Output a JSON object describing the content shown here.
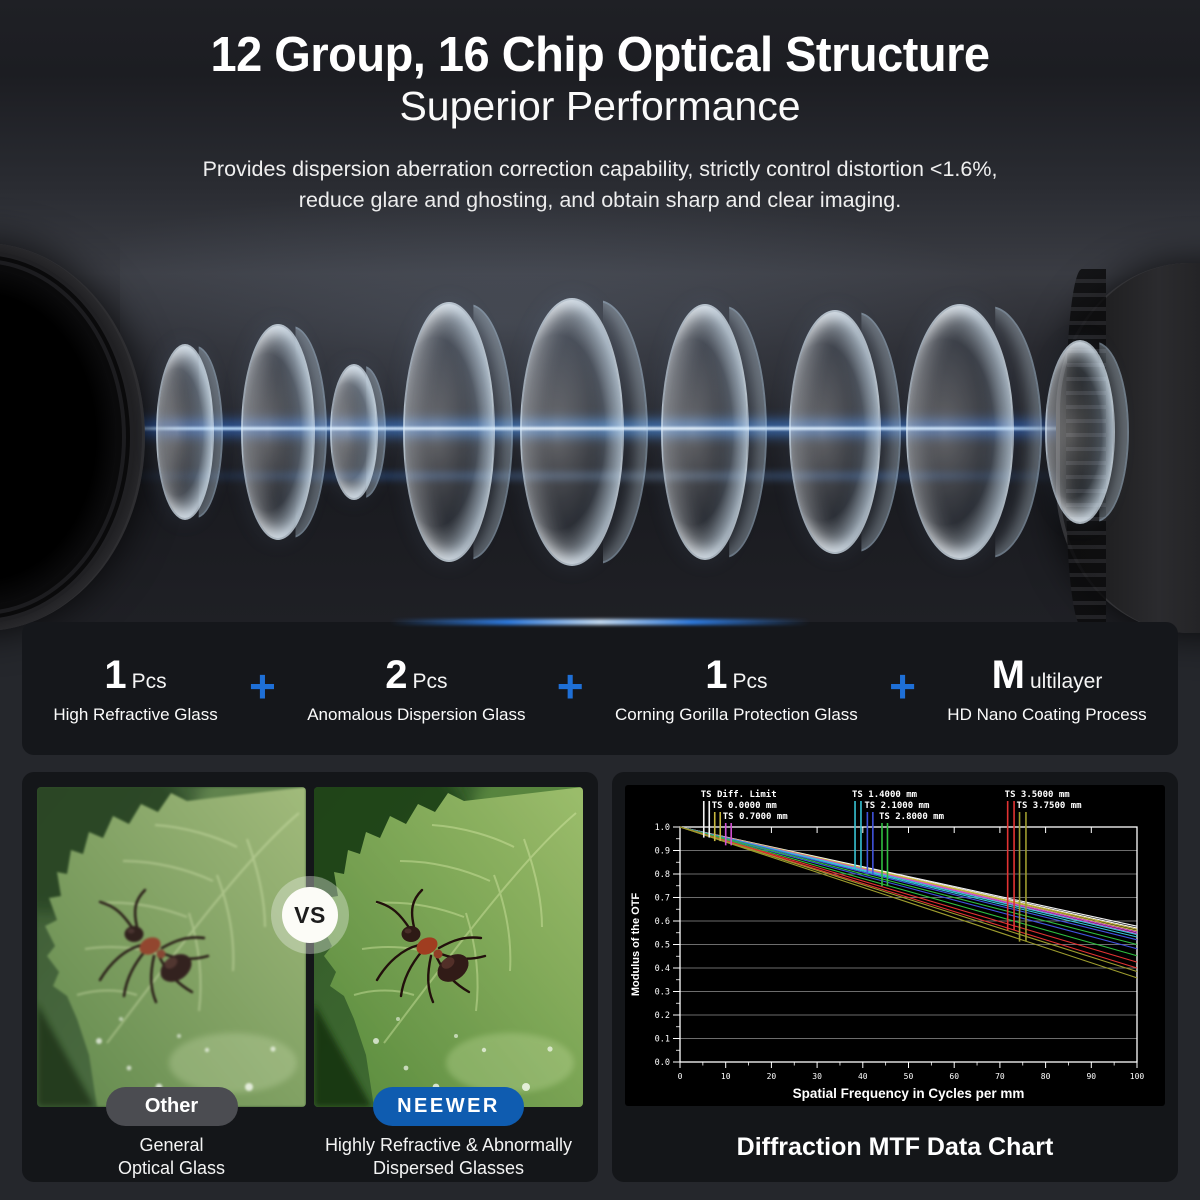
{
  "header": {
    "title": "12 Group, 16 Chip Optical Structure",
    "subtitle": "Superior Performance",
    "description_line1": "Provides dispersion aberration correction capability, strictly control distortion <1.6%,",
    "description_line2": "reduce glare and ghosting, and obtain sharp and clear imaging."
  },
  "colors": {
    "accent_blue": "#1e6fd6",
    "badge_other": "#4b4c51",
    "badge_neewer": "#0f5cb0",
    "card_bg": "#141619"
  },
  "specs": {
    "plus": "+",
    "items": [
      {
        "value": "1",
        "unit": "Pcs",
        "label": "High Refractive Glass"
      },
      {
        "value": "2",
        "unit": "Pcs",
        "label": "Anomalous Dispersion Glass"
      },
      {
        "value": "1",
        "unit": "Pcs",
        "label": "Corning Gorilla Protection Glass"
      },
      {
        "value": "M",
        "unit": "ultilayer",
        "label": "HD Nano Coating Process"
      }
    ]
  },
  "comparison": {
    "vs": "VS",
    "left": {
      "badge": "Other",
      "caption_line1": "General",
      "caption_line2": "Optical Glass"
    },
    "right": {
      "badge": "NEEWER",
      "caption_line1": "Highly Refractive & Abnormally",
      "caption_line2": "Dispersed Glasses"
    }
  },
  "chart_section": {
    "title": "Diffraction MTF Data Chart"
  },
  "chart_data": {
    "type": "line",
    "title": "Diffraction MTF Data Chart",
    "xlabel": "Spatial Frequency in Cycles per mm",
    "ylabel": "Modulus of the OTF",
    "xlim": [
      0,
      100
    ],
    "ylim": [
      0,
      1
    ],
    "x_ticks": [
      0,
      10,
      20,
      30,
      40,
      50,
      60,
      70,
      80,
      90,
      100
    ],
    "y_tick_step": 0.1,
    "grid": "horizontal",
    "legend_position": "top",
    "note": "Each TS series is a pair of straight lines (tangential/sagittal) from (0,1.0) to (100,end); marker_x are the legend key vertical lines hanging to marker_bottom.",
    "series": [
      {
        "name": "TS Diff. Limit",
        "color": "#f2f2f2",
        "row": 0,
        "marker_x": [
          5.2,
          6.4
        ],
        "marker_bottom": 0.955,
        "x": [
          0,
          100
        ],
        "ends": [
          0.578,
          0.57
        ]
      },
      {
        "name": "TS 0.0000 mm",
        "color": "#c8b93f",
        "row": 1,
        "marker_x": [
          7.6,
          8.8
        ],
        "marker_bottom": 0.94,
        "x": [
          0,
          100
        ],
        "ends": [
          0.565,
          0.558
        ]
      },
      {
        "name": "TS 0.7000 mm",
        "color": "#d14fd1",
        "row": 2,
        "marker_x": [
          10.0,
          11.2
        ],
        "marker_bottom": 0.922,
        "x": [
          0,
          100
        ],
        "ends": [
          0.553,
          0.546
        ]
      },
      {
        "name": "TS 1.4000 mm",
        "color": "#37c4d4",
        "row": 0,
        "marker_x": [
          38.3,
          39.6
        ],
        "marker_bottom": 0.825,
        "x": [
          0,
          100
        ],
        "ends": [
          0.542,
          0.532
        ]
      },
      {
        "name": "TS 2.1000 mm",
        "color": "#4053dd",
        "row": 1,
        "marker_x": [
          41.0,
          42.2
        ],
        "marker_bottom": 0.8,
        "x": [
          0,
          100
        ],
        "ends": [
          0.52,
          0.482
        ]
      },
      {
        "name": "TS 2.8000 mm",
        "color": "#2fbe3f",
        "row": 2,
        "marker_x": [
          44.2,
          45.4
        ],
        "marker_bottom": 0.748,
        "x": [
          0,
          100
        ],
        "ends": [
          0.5,
          0.452
        ]
      },
      {
        "name": "TS 3.5000 mm",
        "color": "#e23333",
        "row": 0,
        "marker_x": [
          71.7,
          73.1
        ],
        "marker_bottom": 0.56,
        "x": [
          0,
          100
        ],
        "ends": [
          0.425,
          0.4
        ]
      },
      {
        "name": "TS 3.7500 mm",
        "color": "#9d9c2e",
        "row": 1,
        "marker_x": [
          74.3,
          75.7
        ],
        "marker_bottom": 0.512,
        "x": [
          0,
          100
        ],
        "ends": [
          0.385,
          0.358
        ]
      }
    ]
  }
}
